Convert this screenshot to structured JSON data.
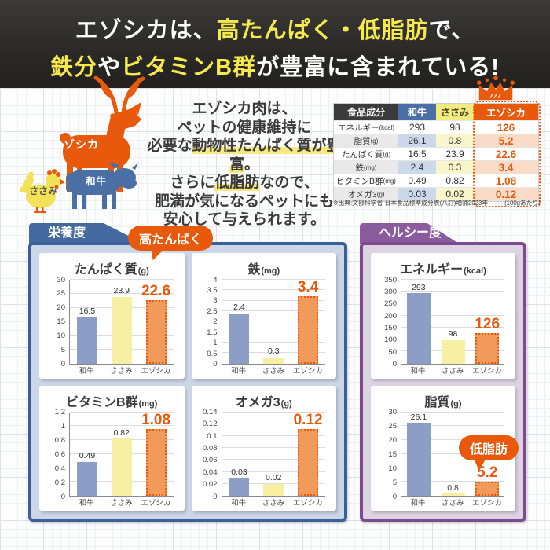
{
  "header": {
    "line1": [
      {
        "text": "エゾシカは、",
        "c": "white"
      },
      {
        "text": "高たんぱく・低脂肪",
        "c": "yellow"
      },
      {
        "text": "で、",
        "c": "white"
      }
    ],
    "line2": [
      {
        "text": "鉄分",
        "c": "yellow"
      },
      {
        "text": "や",
        "c": "white"
      },
      {
        "text": "ビタミンB群",
        "c": "yellow"
      },
      {
        "text": "が豊富に含まれている!",
        "c": "white"
      }
    ]
  },
  "illustration": {
    "deer_label": "エゾシカ",
    "cow_label": "和牛",
    "chicken_label": "ささみ"
  },
  "intro": {
    "lines": [
      [
        {
          "text": "エゾシカ肉は、"
        }
      ],
      [
        {
          "text": "ペットの健康維持に"
        }
      ],
      [
        {
          "text": "必要な"
        },
        {
          "text": "動物性たんぱく質が豊富",
          "c": "mark"
        },
        {
          "text": "。"
        }
      ],
      [
        {
          "text": "さらに"
        },
        {
          "text": "低脂肪",
          "c": "mark"
        },
        {
          "text": "なので、"
        }
      ],
      [
        {
          "text": "肥満が気になるペットにも"
        }
      ],
      [
        {
          "text": "安心して与えられます。"
        }
      ]
    ]
  },
  "table": {
    "col_headers": [
      "食品成分",
      "和牛",
      "ささみ",
      "エゾシカ"
    ],
    "rows": [
      {
        "label": "エネルギー",
        "unit": "(kcal)",
        "values": [
          "293",
          "98",
          "126"
        ]
      },
      {
        "label": "脂質",
        "unit": "(g)",
        "values": [
          "26.1",
          "0.8",
          "5.2"
        ]
      },
      {
        "label": "たんぱく質",
        "unit": "(g)",
        "values": [
          "16.5",
          "23.9",
          "22.6"
        ]
      },
      {
        "label": "鉄",
        "unit": "(mg)",
        "values": [
          "2.4",
          "0.3",
          "3.4"
        ]
      },
      {
        "label": "ビタミンB群",
        "unit": "(mg)",
        "values": [
          "0.49",
          "0.82",
          "1.08"
        ]
      },
      {
        "label": "オメガ3",
        "unit": "(g)",
        "values": [
          "0.03",
          "0.02",
          "0.12"
        ]
      }
    ],
    "source_note": "※出典:文部科学省 日本食品標準成分表(八訂)増補2023年",
    "per_note": "(100gあたり)"
  },
  "sections": {
    "nutrition": {
      "title": "栄養度",
      "badge": "高たんぱく"
    },
    "healthy": {
      "title": "ヘルシー度",
      "badge": "低脂肪"
    }
  },
  "chart_data": [
    {
      "id": "protein",
      "panel": "栄養度",
      "type": "bar",
      "title": "たんぱく質",
      "unit": "(g)",
      "categories": [
        "和牛",
        "ささみ",
        "エゾシカ"
      ],
      "values": [
        16.5,
        23.9,
        22.6
      ],
      "value_labels": [
        "16.5",
        "23.9",
        "22.6"
      ],
      "ylim": [
        0,
        30
      ],
      "yticks": [
        "0",
        "5",
        "10",
        "15",
        "20",
        "25",
        "30"
      ],
      "highlight_index": 2
    },
    {
      "id": "iron",
      "panel": "栄養度",
      "type": "bar",
      "title": "鉄",
      "unit": "(mg)",
      "categories": [
        "和牛",
        "ささみ",
        "エゾシカ"
      ],
      "values": [
        2.4,
        0.3,
        3.4
      ],
      "value_labels": [
        "2.4",
        "0.3",
        "3.4"
      ],
      "ylim": [
        0,
        4
      ],
      "yticks": [
        "0",
        "0.5",
        "1",
        "1.5",
        "2",
        "2.5",
        "3",
        "3.5",
        "4"
      ],
      "highlight_index": 2
    },
    {
      "id": "vitamin-b",
      "panel": "栄養度",
      "type": "bar",
      "title": "ビタミンB群",
      "unit": "(mg)",
      "categories": [
        "和牛",
        "ささみ",
        "エゾシカ"
      ],
      "values": [
        0.49,
        0.82,
        1.08
      ],
      "value_labels": [
        "0.49",
        "0.82",
        "1.08"
      ],
      "ylim": [
        0,
        1.2
      ],
      "yticks": [
        "0",
        "0.2",
        "0.4",
        "0.6",
        "0.8",
        "1",
        "1.2"
      ],
      "highlight_index": 2
    },
    {
      "id": "omega3",
      "panel": "栄養度",
      "type": "bar",
      "title": "オメガ3",
      "unit": "(g)",
      "categories": [
        "和牛",
        "ささみ",
        "エゾシカ"
      ],
      "values": [
        0.03,
        0.02,
        0.12
      ],
      "value_labels": [
        "0.03",
        "0.02",
        "0.12"
      ],
      "ylim": [
        0,
        0.14
      ],
      "yticks": [
        "0",
        "0.02",
        "0.04",
        "0.06",
        "0.08",
        "0.1",
        "0.12",
        "0.14"
      ],
      "highlight_index": 2
    },
    {
      "id": "energy",
      "panel": "ヘルシー度",
      "type": "bar",
      "title": "エネルギー",
      "unit": "(kcal)",
      "categories": [
        "和牛",
        "ささみ",
        "エゾシカ"
      ],
      "values": [
        293,
        98,
        126
      ],
      "value_labels": [
        "293",
        "98",
        "126"
      ],
      "ylim": [
        0,
        350
      ],
      "yticks": [
        "0",
        "50",
        "100",
        "150",
        "200",
        "250",
        "300",
        "350"
      ],
      "highlight_index": 2
    },
    {
      "id": "fat",
      "panel": "ヘルシー度",
      "type": "bar",
      "title": "脂質",
      "unit": "(g)",
      "categories": [
        "和牛",
        "ささみ",
        "エゾシカ"
      ],
      "values": [
        26.1,
        0.8,
        5.2
      ],
      "value_labels": [
        "26.1",
        "0.8",
        "5.2"
      ],
      "ylim": [
        0,
        30
      ],
      "yticks": [
        "0",
        "5",
        "10",
        "15",
        "20",
        "25",
        "30"
      ],
      "highlight_index": 2
    }
  ],
  "colors": {
    "accent_orange": "#e8590c",
    "accent_yellow": "#f5e94b",
    "wagyu_blue": "#4a6fa5",
    "sasami_yellow": "#f2eb7d",
    "bar_wagyu": "#8c9ec5",
    "bar_sasami": "#f7f0a2",
    "bar_ezoshika": "#f19a5b",
    "panel_nutrition_border": "#3a5f9b",
    "panel_healthy_border": "#7c4b8f"
  }
}
